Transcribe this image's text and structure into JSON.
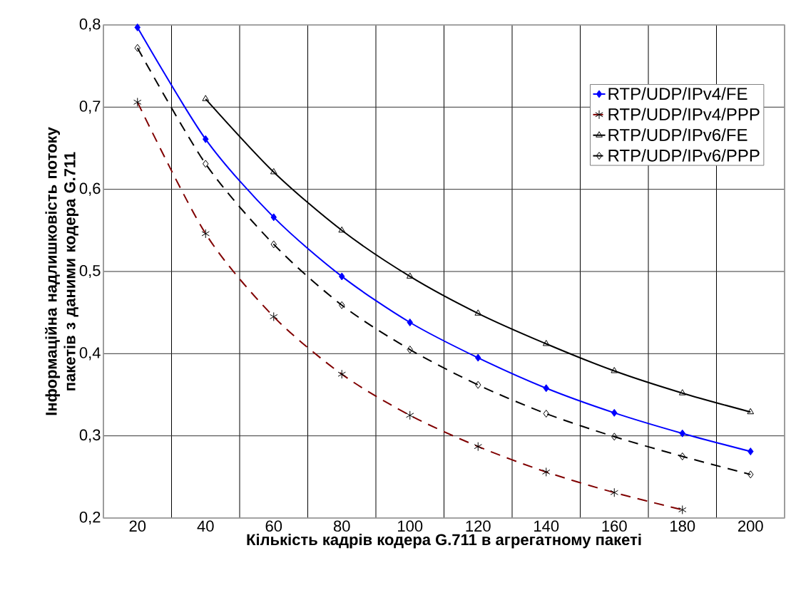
{
  "chart_data": {
    "type": "line",
    "xlabel": "Кількість кадрів кодера G.711 в агрегатному пакеті",
    "ylabel": "Інформаційна надлишковість потоку пакетів з даними кодера G.711",
    "categories": [
      "20",
      "40",
      "60",
      "80",
      "100",
      "120",
      "140",
      "160",
      "180",
      "200"
    ],
    "ylim": [
      0.2,
      0.8
    ],
    "yticks": [
      {
        "value": 0.2,
        "label": "0,2"
      },
      {
        "value": 0.3,
        "label": "0,3"
      },
      {
        "value": 0.4,
        "label": "0,4"
      },
      {
        "value": 0.5,
        "label": "0,5"
      },
      {
        "value": 0.6,
        "label": "0,6"
      },
      {
        "value": 0.7,
        "label": "0,7"
      },
      {
        "value": 0.8,
        "label": "0,8"
      }
    ],
    "grid": true,
    "legend": "top right",
    "series": [
      {
        "name": "RTP/UDP/IPv4/FE",
        "color": "#0000ff",
        "marker": "diamond",
        "line_style": "solid",
        "values": [
          0.797,
          0.661,
          0.566,
          0.494,
          0.438,
          0.395,
          0.358,
          0.328,
          0.303,
          0.281
        ]
      },
      {
        "name": "RTP/UDP/IPv4/PPP",
        "color": "#800000",
        "marker": "cross",
        "line_style": "dashed",
        "values": [
          0.706,
          0.546,
          0.445,
          0.375,
          0.325,
          0.287,
          0.256,
          0.231,
          0.21,
          null
        ]
      },
      {
        "name": "RTP/UDP/IPv6/FE",
        "color": "#000000",
        "marker": "triangle",
        "line_style": "solid",
        "values": [
          null,
          0.71,
          0.621,
          0.55,
          0.494,
          0.449,
          0.412,
          0.379,
          0.352,
          0.329
        ]
      },
      {
        "name": "RTP/UDP/IPv6/PPP",
        "color": "#000000",
        "marker": "diamond",
        "line_style": "dashed",
        "values": [
          0.772,
          0.631,
          0.533,
          0.459,
          0.405,
          0.362,
          0.327,
          0.299,
          0.275,
          0.253
        ]
      }
    ]
  }
}
